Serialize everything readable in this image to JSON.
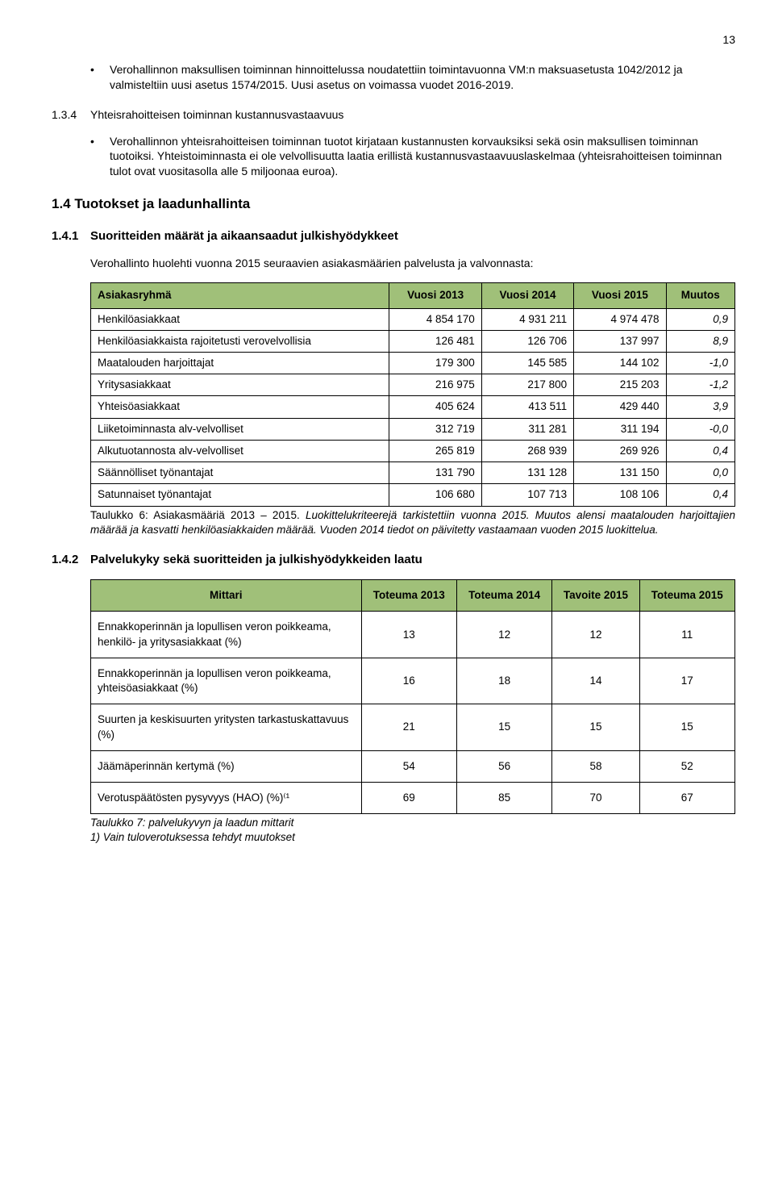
{
  "page_number": "13",
  "intro_bullet": "Verohallinnon maksullisen toiminnan hinnoittelussa noudatettiin toimintavuonna VM:n maksuasetusta 1042/2012 ja valmisteltiin uusi asetus 1574/2015. Uusi asetus on voimassa vuodet 2016-2019.",
  "section_134": {
    "num": "1.3.4",
    "title": "Yhteisrahoitteisen toiminnan kustannusvastaavuus",
    "bullet": "Verohallinnon yhteisrahoitteisen toiminnan tuotot kirjataan kustannusten korvauksiksi sekä osin maksullisen toiminnan tuotoiksi. Yhteistoiminnasta ei ole velvollisuutta laatia erillistä kustannusvastaavuuslaskelmaa (yhteisrahoitteisen toiminnan tulot ovat vuositasolla alle 5 miljoonaa euroa)."
  },
  "section_14": "1.4  Tuotokset ja laadunhallinta",
  "section_141": {
    "num": "1.4.1",
    "title": "Suoritteiden määrät ja aikaansaadut julkishyödykkeet",
    "intro": "Verohallinto huolehti vuonna 2015 seuraavien asiakasmäärien palvelusta ja valvonnasta:"
  },
  "table1": {
    "header_bg": "#a0c079",
    "headers": [
      "Asiakasryhmä",
      "Vuosi 2013",
      "Vuosi 2014",
      "Vuosi 2015",
      "Muutos"
    ],
    "rows": [
      [
        "Henkilöasiakkaat",
        "4 854 170",
        "4 931 211",
        "4 974 478",
        "0,9"
      ],
      [
        "Henkilöasiakkaista rajoitetusti verovelvollisia",
        "126 481",
        "126 706",
        "137 997",
        "8,9"
      ],
      [
        "Maatalouden harjoittajat",
        "179 300",
        "145 585",
        "144 102",
        "-1,0"
      ],
      [
        "Yritysasiakkaat",
        "216 975",
        "217 800",
        "215 203",
        "-1,2"
      ],
      [
        "Yhteisöasiakkaat",
        "405 624",
        "413 511",
        "429 440",
        "3,9"
      ],
      [
        "Liiketoiminnasta alv-velvolliset",
        "312 719",
        "311 281",
        "311 194",
        "-0,0"
      ],
      [
        "Alkutuotannosta alv-velvolliset",
        "265 819",
        "268 939",
        "269 926",
        "0,4"
      ],
      [
        "Säännölliset työnantajat",
        "131 790",
        "131 128",
        "131 150",
        "0,0"
      ],
      [
        "Satunnaiset työnantajat",
        "106 680",
        "107 713",
        "108 106",
        "0,4"
      ]
    ]
  },
  "caption1_pre": "Taulukko 6: Asiakasmääriä 2013 – 2015. ",
  "caption1_italic": "Luokittelukriteerejä tarkistettiin vuonna 2015. Muutos alensi maatalouden harjoittajien määrää ja kasvatti henkilöasiakkaiden määrää. Vuoden 2014 tiedot on päivitetty vastaamaan vuoden 2015 luokittelua.",
  "section_142": {
    "num": "1.4.2",
    "title": "Palvelukyky sekä suoritteiden ja julkishyödykkeiden laatu"
  },
  "table2": {
    "headers": [
      "Mittari",
      "Toteuma 2013",
      "Toteuma 2014",
      "Tavoite 2015",
      "Toteuma 2015"
    ],
    "rows": [
      [
        "Ennakkoperinnän ja lopullisen veron poikkeama, henkilö- ja yritysasiakkaat (%)",
        "13",
        "12",
        "12",
        "11"
      ],
      [
        "Ennakkoperinnän ja lopullisen veron poikkeama, yhteisöasiakkaat (%)",
        "16",
        "18",
        "14",
        "17"
      ],
      [
        "Suurten ja keskisuurten yritysten tarkastuskattavuus (%)",
        "21",
        "15",
        "15",
        "15"
      ],
      [
        "Jäämäperinnän kertymä (%)",
        "54",
        "56",
        "58",
        "52"
      ],
      [
        "Verotuspäätösten pysyvyys (HAO) (%)⁽¹",
        "69",
        "85",
        "70",
        "67"
      ]
    ]
  },
  "caption2_line1": "Taulukko 7: palvelukyvyn ja laadun mittarit",
  "caption2_line2": "1) Vain tuloverotuksessa tehdyt muutokset"
}
